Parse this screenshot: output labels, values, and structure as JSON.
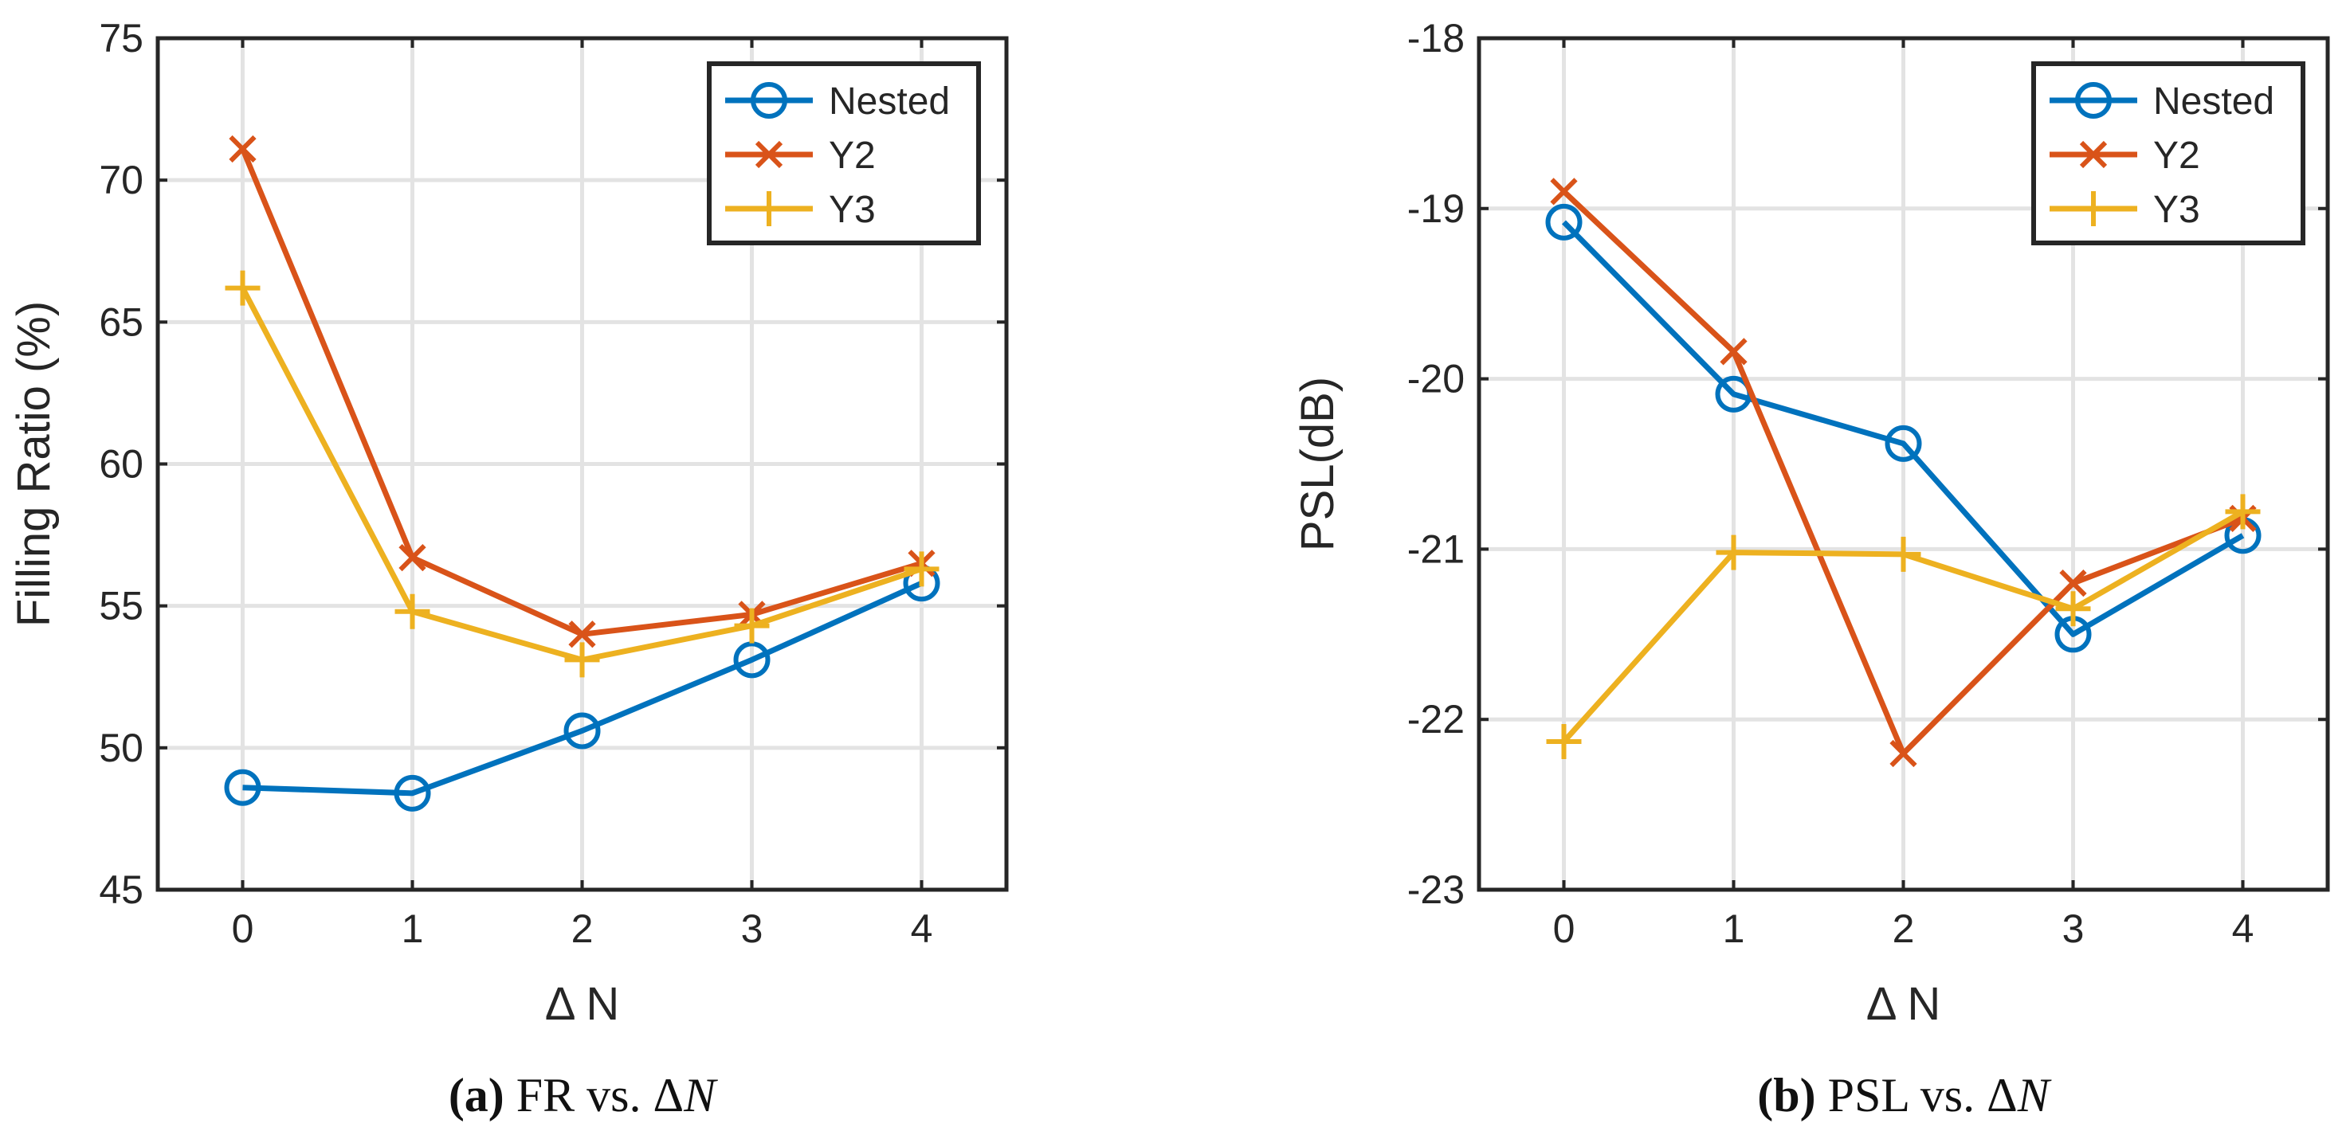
{
  "colors": {
    "nested": "#0072BD",
    "y2": "#D95319",
    "y3": "#EDB120",
    "grid": "#E3E3E3",
    "axis": "#262626"
  },
  "chart_data": [
    {
      "type": "line",
      "xlabel": "Δ N",
      "ylabel": "Filling Ratio (%)",
      "caption": {
        "letter": "(a)",
        "text": "FR vs. Δ",
        "var": "N"
      },
      "xlim": [
        -0.5,
        4.5
      ],
      "ylim": [
        45,
        75
      ],
      "x": [
        0,
        1,
        2,
        3,
        4
      ],
      "xticks": [
        "0",
        "1",
        "2",
        "3",
        "4"
      ],
      "yticks": [
        "45",
        "50",
        "55",
        "60",
        "65",
        "70",
        "75"
      ],
      "grid": true,
      "legend_position": "top-right",
      "series": [
        {
          "name": "Nested",
          "marker": "circle",
          "values": [
            48.6,
            48.4,
            50.6,
            53.1,
            55.8
          ]
        },
        {
          "name": "Y2",
          "marker": "x",
          "values": [
            71.1,
            56.7,
            54.0,
            54.7,
            56.5
          ]
        },
        {
          "name": "Y3",
          "marker": "plus",
          "values": [
            66.2,
            54.8,
            53.1,
            54.3,
            56.3
          ]
        }
      ]
    },
    {
      "type": "line",
      "xlabel": "Δ N",
      "ylabel": "PSL(dB)",
      "caption": {
        "letter": "(b)",
        "text": "PSL vs. Δ",
        "var": "N"
      },
      "xlim": [
        -0.5,
        4.5
      ],
      "ylim": [
        -23,
        -18
      ],
      "x": [
        0,
        1,
        2,
        3,
        4
      ],
      "xticks": [
        "0",
        "1",
        "2",
        "3",
        "4"
      ],
      "yticks": [
        "-23",
        "-22",
        "-21",
        "-20",
        "-19",
        "-18"
      ],
      "grid": true,
      "legend_position": "top-right",
      "series": [
        {
          "name": "Nested",
          "marker": "circle",
          "values": [
            -19.08,
            -20.09,
            -20.38,
            -21.5,
            -20.92
          ]
        },
        {
          "name": "Y2",
          "marker": "x",
          "values": [
            -18.9,
            -19.84,
            -22.2,
            -21.2,
            -20.82
          ]
        },
        {
          "name": "Y3",
          "marker": "plus",
          "values": [
            -22.13,
            -21.02,
            -21.03,
            -21.35,
            -20.78
          ]
        }
      ]
    }
  ]
}
